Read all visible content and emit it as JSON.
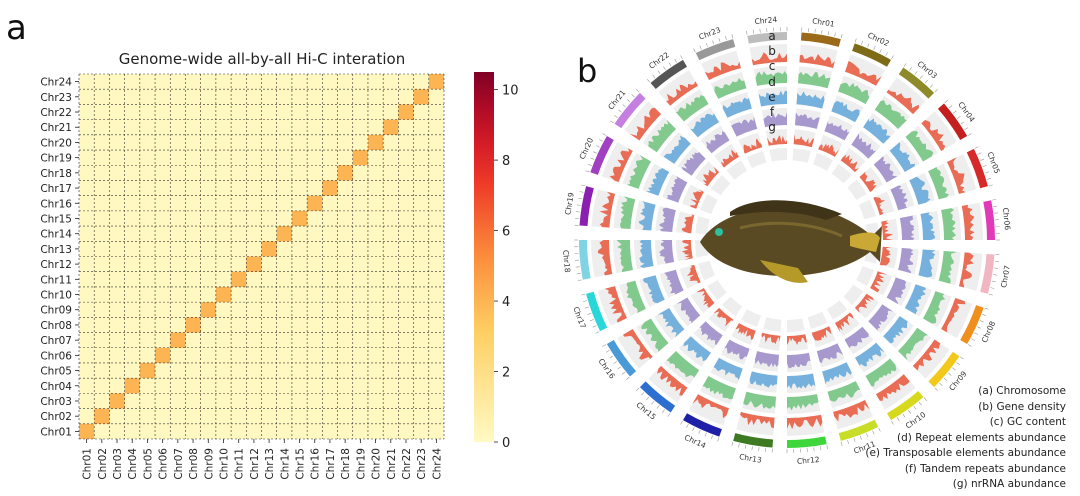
{
  "panel_a": {
    "label": "a",
    "chart_data": {
      "type": "heatmap",
      "title": "Genome-wide all-by-all Hi-C interation",
      "x_categories": [
        "Chr01",
        "Chr02",
        "Chr03",
        "Chr04",
        "Chr05",
        "Chr06",
        "Chr07",
        "Chr08",
        "Chr09",
        "Chr10",
        "Chr11",
        "Chr12",
        "Chr13",
        "Chr14",
        "Chr15",
        "Chr16",
        "Chr17",
        "Chr18",
        "Chr19",
        "Chr20",
        "Chr21",
        "Chr22",
        "Chr23",
        "Chr24"
      ],
      "y_categories": [
        "Chr01",
        "Chr02",
        "Chr03",
        "Chr04",
        "Chr05",
        "Chr06",
        "Chr07",
        "Chr08",
        "Chr09",
        "Chr10",
        "Chr11",
        "Chr12",
        "Chr13",
        "Chr14",
        "Chr15",
        "Chr16",
        "Chr17",
        "Chr18",
        "Chr19",
        "Chr20",
        "Chr21",
        "Chr22",
        "Chr23",
        "Chr24"
      ],
      "diagonal_value": 4,
      "off_diagonal_value": 0.5,
      "colorbar": {
        "min": 0,
        "max": 10.5,
        "ticks": [
          0,
          2,
          4,
          6,
          8,
          10
        ],
        "colormap": "YlOrRd"
      },
      "gridlines": "dashed"
    }
  },
  "panel_b": {
    "label": "b",
    "chart_data": {
      "type": "circos",
      "chromosomes": [
        {
          "name": "Chr01",
          "color": "#9a6a1a"
        },
        {
          "name": "Chr02",
          "color": "#7d6b16"
        },
        {
          "name": "Chr03",
          "color": "#8e8a2a"
        },
        {
          "name": "Chr04",
          "color": "#c41f1f"
        },
        {
          "name": "Chr05",
          "color": "#d62a2a"
        },
        {
          "name": "Chr06",
          "color": "#e03ab8"
        },
        {
          "name": "Chr07",
          "color": "#f0b6c2"
        },
        {
          "name": "Chr08",
          "color": "#ef8f1c"
        },
        {
          "name": "Chr09",
          "color": "#f2c81a"
        },
        {
          "name": "Chr10",
          "color": "#d7d91f"
        },
        {
          "name": "Chr11",
          "color": "#c7dd27"
        },
        {
          "name": "Chr12",
          "color": "#3ed63a"
        },
        {
          "name": "Chr13",
          "color": "#3e7a22"
        },
        {
          "name": "Chr14",
          "color": "#1f1fa8"
        },
        {
          "name": "Chr15",
          "color": "#2d6fd1"
        },
        {
          "name": "Chr16",
          "color": "#4a9ad8"
        },
        {
          "name": "Chr17",
          "color": "#29d7d9"
        },
        {
          "name": "Chr18",
          "color": "#7fd3e2"
        },
        {
          "name": "Chr19",
          "color": "#8a1fb0"
        },
        {
          "name": "Chr20",
          "color": "#a03fbf"
        },
        {
          "name": "Chr21",
          "color": "#c47fe0"
        },
        {
          "name": "Chr22",
          "color": "#555555"
        },
        {
          "name": "Chr23",
          "color": "#999999"
        },
        {
          "name": "Chr24",
          "color": "#bdbdbd"
        }
      ],
      "track_letters": [
        "a",
        "b",
        "c",
        "d",
        "e",
        "f",
        "g"
      ],
      "tracks": [
        {
          "key": "b",
          "label": "(b) Gene density",
          "color": "#e8553a"
        },
        {
          "key": "c",
          "label": "(c) GC content",
          "color": "#6fc27d"
        },
        {
          "key": "d",
          "label": "(d) Repeat elements abundance",
          "color": "#5fa6d8"
        },
        {
          "key": "e",
          "label": "(e) Transposable elements abundance",
          "color": "#9a88c8"
        },
        {
          "key": "f",
          "label": "(f) Tandem repeats abundance",
          "color": "#e8553a"
        },
        {
          "key": "g",
          "label": "(g) nrRNA abundance",
          "color": "#bdbdbd"
        }
      ],
      "legend": [
        "(a) Chromosome",
        "(b) Gene density",
        "(c) GC content",
        "(d) Repeat elements abundance",
        "(e) Transposable elements abundance",
        "(f) Tandem repeats abundance",
        "(g) nrRNA abundance"
      ],
      "center_image": "fish"
    }
  }
}
